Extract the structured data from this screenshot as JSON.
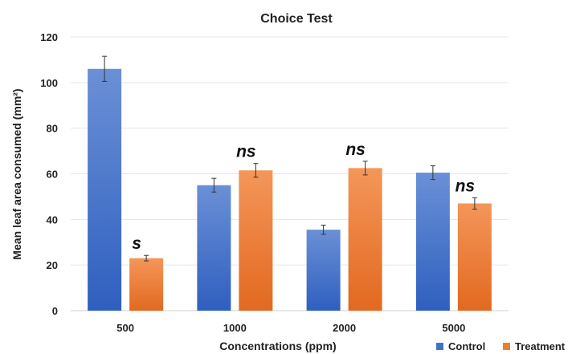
{
  "chart_data": {
    "type": "bar",
    "title": "Choice Test",
    "xlabel": "Concentrations (ppm)",
    "ylabel": "Mean leaf area consumed (mm²)",
    "ylim": [
      0,
      120
    ],
    "yticks": [
      0,
      20,
      40,
      60,
      80,
      100,
      120
    ],
    "categories": [
      "500",
      "1000",
      "2000",
      "5000"
    ],
    "series": [
      {
        "name": "Control",
        "color": "#4472C4",
        "values": [
          106,
          55,
          35.5,
          60.5
        ],
        "error": [
          5.5,
          3,
          2,
          3
        ]
      },
      {
        "name": "Treatment",
        "color": "#ED7D31",
        "values": [
          23,
          61.5,
          62.5,
          47
        ],
        "error": [
          1.2,
          3,
          3,
          2.5
        ]
      }
    ],
    "annotations": [
      "s",
      "ns",
      "ns",
      "ns"
    ],
    "grid": true,
    "legend": "bottom-right"
  }
}
